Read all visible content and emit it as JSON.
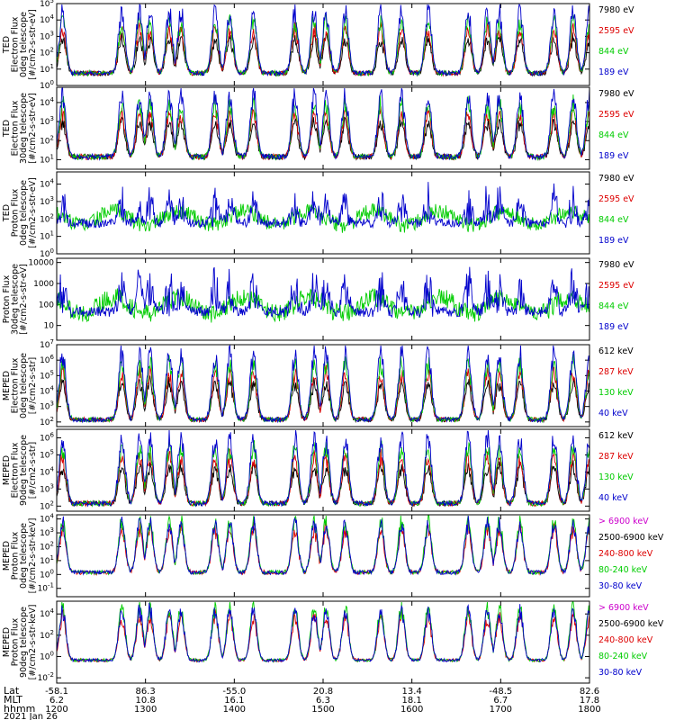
{
  "chart_data": {
    "type": "line",
    "x_time_ticks": [
      "1200",
      "1300",
      "1400",
      "1500",
      "1600",
      "1700",
      "1800"
    ],
    "footer": {
      "rows": [
        {
          "label": "Lat",
          "values": [
            "-58.1",
            "86.3",
            "-55.0",
            "20.8",
            "13.4",
            "-48.5",
            "82.6"
          ]
        },
        {
          "label": "MLT",
          "values": [
            "6.2",
            "10.8",
            "16.1",
            "6.3",
            "18.1",
            "6.7",
            "17.8"
          ]
        },
        {
          "label": "hhmm",
          "values": [
            "1200",
            "1300",
            "1400",
            "1500",
            "1600",
            "1700",
            "1800"
          ]
        }
      ],
      "date": "2021 Jan 26"
    },
    "panels": [
      {
        "ylabel": [
          "TED",
          "Electron Flux",
          "0deg telescope",
          "[#/cm2-s-str-eV]"
        ],
        "yticks": [
          "10^0",
          "10^1",
          "10^2",
          "10^3",
          "10^4",
          "10^5"
        ],
        "log_range": [
          0,
          5
        ],
        "legend": [
          {
            "label": "7980 eV",
            "color": "#000000"
          },
          {
            "label": "2595 eV",
            "color": "#dd0000"
          },
          {
            "label": "844 eV",
            "color": "#00cc00"
          },
          {
            "label": "189 eV",
            "color": "#0000cc"
          }
        ]
      },
      {
        "ylabel": [
          "TED",
          "Electron Flux",
          "30deg telescope",
          "[#/cm2-s-str-eV]"
        ],
        "yticks": [
          "10^1",
          "10^2",
          "10^3",
          "10^4"
        ],
        "log_range": [
          0.5,
          4.8
        ],
        "legend": [
          {
            "label": "7980 eV",
            "color": "#000000"
          },
          {
            "label": "2595 eV",
            "color": "#dd0000"
          },
          {
            "label": "844 eV",
            "color": "#00cc00"
          },
          {
            "label": "189 eV",
            "color": "#0000cc"
          }
        ]
      },
      {
        "ylabel": [
          "TED",
          "Proton Flux",
          "0deg telescope",
          "[#/cm2-s-str-eV]"
        ],
        "yticks": [
          "10^0",
          "10^1",
          "10^2",
          "10^3",
          "10^4"
        ],
        "log_range": [
          0,
          4.7
        ],
        "legend": [
          {
            "label": "7980 eV",
            "color": "#000000"
          },
          {
            "label": "2595 eV",
            "color": "#dd0000"
          },
          {
            "label": "844 eV",
            "color": "#00cc00"
          },
          {
            "label": "189 eV",
            "color": "#0000cc"
          }
        ]
      },
      {
        "ylabel": [
          "Proton Flux",
          "30deg telescope",
          "[#/cm2-s-str-eV]"
        ],
        "yticks": [
          "10",
          "100",
          "1000",
          "10000"
        ],
        "log_range": [
          0.3,
          4.2
        ],
        "legend": [
          {
            "label": "7980 eV",
            "color": "#000000"
          },
          {
            "label": "2595 eV",
            "color": "#dd0000"
          },
          {
            "label": "844 eV",
            "color": "#00cc00"
          },
          {
            "label": "189 eV",
            "color": "#0000cc"
          }
        ]
      },
      {
        "ylabel": [
          "MEPED",
          "Electron Flux",
          "0deg telescope",
          "[#/cm2-s-str]"
        ],
        "yticks": [
          "10^2",
          "10^3",
          "10^4",
          "10^5",
          "10^6",
          "10^7"
        ],
        "log_range": [
          1.7,
          7
        ],
        "legend": [
          {
            "label": "612 keV",
            "color": "#000000"
          },
          {
            "label": "287 keV",
            "color": "#dd0000"
          },
          {
            "label": "130 keV",
            "color": "#00cc00"
          },
          {
            "label": "40 keV",
            "color": "#0000cc"
          }
        ]
      },
      {
        "ylabel": [
          "MEPED",
          "Electron Flux",
          "90deg telescope",
          "[#/cm2-s-str]"
        ],
        "yticks": [
          "10^2",
          "10^3",
          "10^4",
          "10^5",
          "10^6"
        ],
        "log_range": [
          1.7,
          6.5
        ],
        "legend": [
          {
            "label": "612 keV",
            "color": "#000000"
          },
          {
            "label": "287 keV",
            "color": "#dd0000"
          },
          {
            "label": "130 keV",
            "color": "#00cc00"
          },
          {
            "label": "40 keV",
            "color": "#0000cc"
          }
        ]
      },
      {
        "ylabel": [
          "MEPED",
          "Proton Flux",
          "0deg telescope",
          "[#/cm2-s-str-keV]"
        ],
        "yticks": [
          "10^-1",
          "10^0",
          "10^1",
          "10^2",
          "10^3",
          "10^4"
        ],
        "log_range": [
          -1.6,
          4.3
        ],
        "legend": [
          {
            "label": "> 6900 keV",
            "color": "#cc00cc"
          },
          {
            "label": "2500-6900 keV",
            "color": "#000000"
          },
          {
            "label": "240-800 keV",
            "color": "#dd0000"
          },
          {
            "label": "80-240 keV",
            "color": "#00cc00"
          },
          {
            "label": "30-80 keV",
            "color": "#0000cc"
          }
        ]
      },
      {
        "ylabel": [
          "MEPED",
          "Proton Flux",
          "90deg telescope",
          "[#/cm2-s-str-keV]"
        ],
        "yticks": [
          "10^-2",
          "10^0",
          "10^2",
          "10^4"
        ],
        "log_range": [
          -2.5,
          5.2
        ],
        "legend": [
          {
            "label": "> 6900 keV",
            "color": "#cc00cc"
          },
          {
            "label": "2500-6900 keV",
            "color": "#000000"
          },
          {
            "label": "240-800 keV",
            "color": "#dd0000"
          },
          {
            "label": "80-240 keV",
            "color": "#00cc00"
          },
          {
            "label": "30-80 keV",
            "color": "#0000cc"
          }
        ]
      }
    ],
    "pass_centers_hhmm": [
      "1204",
      "1244",
      "1256",
      "1303",
      "1316",
      "1324",
      "1347",
      "1357",
      "1413",
      "1441",
      "1454",
      "1502",
      "1515",
      "1539",
      "1553",
      "1611",
      "1638",
      "1651",
      "1659",
      "1713",
      "1736",
      "1749",
      "1800"
    ],
    "colors": {
      "background": "#ffffff",
      "axis": "#000000",
      "blue": "#0000cc",
      "green": "#00cc00",
      "red": "#dd0000",
      "magenta": "#cc00cc"
    }
  }
}
